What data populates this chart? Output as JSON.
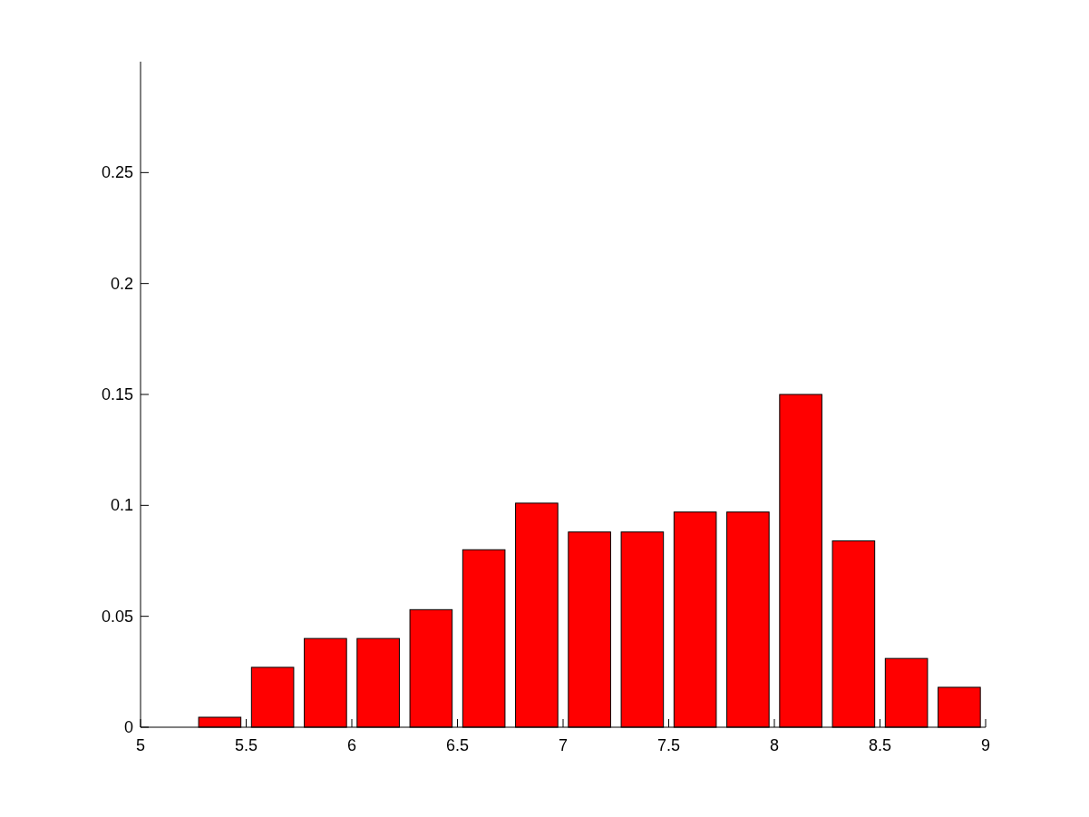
{
  "chart_data": {
    "type": "bar",
    "x": [
      5.375,
      5.625,
      5.875,
      6.125,
      6.375,
      6.625,
      6.875,
      7.125,
      7.375,
      7.625,
      7.875,
      8.125,
      8.375,
      8.625,
      8.875
    ],
    "values": [
      0.0045,
      0.027,
      0.04,
      0.04,
      0.053,
      0.08,
      0.101,
      0.088,
      0.088,
      0.097,
      0.097,
      0.15,
      0.084,
      0.031,
      0.018
    ],
    "color": "#ff0000",
    "xlim": [
      5,
      9
    ],
    "xticks": [
      5,
      5.5,
      6,
      6.5,
      7,
      7.5,
      8,
      8.5,
      9
    ],
    "ylim": [
      0,
      0.3
    ],
    "yticks": [
      0,
      0.05,
      0.1,
      0.15,
      0.2,
      0.25
    ],
    "grid": false
  }
}
